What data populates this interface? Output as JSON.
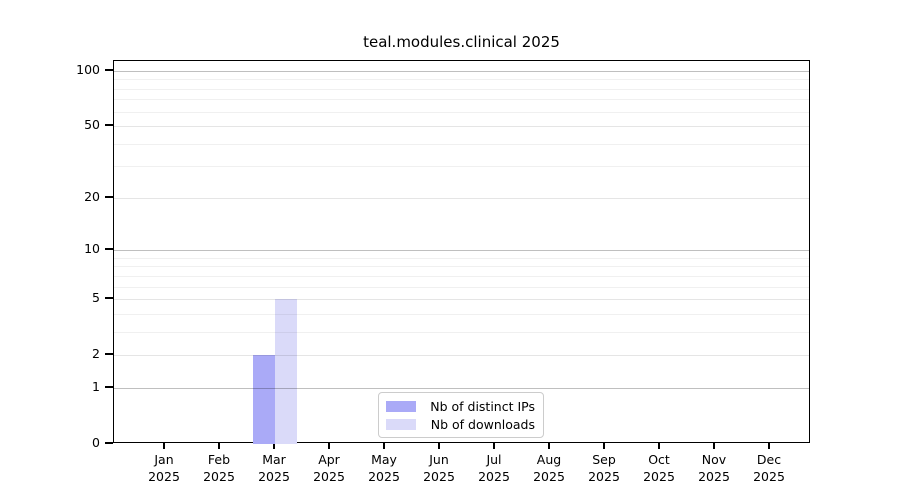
{
  "title": "teal.modules.clinical 2025",
  "chart_data": {
    "type": "bar",
    "title": "teal.modules.clinical 2025",
    "x_months": [
      "Jan",
      "Feb",
      "Mar",
      "Apr",
      "May",
      "Jun",
      "Jul",
      "Aug",
      "Sep",
      "Oct",
      "Nov",
      "Dec"
    ],
    "x_year": "2025",
    "series": [
      {
        "name": "Nb of distinct IPs",
        "color": "#aaaaf7",
        "values": [
          0,
          0,
          2,
          0,
          0,
          0,
          0,
          0,
          0,
          0,
          0,
          0
        ]
      },
      {
        "name": "Nb of downloads",
        "color": "#dadaf9",
        "values": [
          0,
          0,
          5,
          0,
          0,
          0,
          0,
          0,
          0,
          0,
          0,
          0
        ]
      }
    ],
    "xlabel": "",
    "ylabel": "",
    "y_axis": {
      "scale": "log1p",
      "ticks": [
        0,
        1,
        2,
        5,
        10,
        20,
        50,
        100
      ],
      "decade_gridlines": [
        1,
        10,
        100
      ],
      "minor_gridlines": [
        3,
        4,
        6,
        7,
        8,
        9,
        30,
        40,
        60,
        70,
        80,
        90
      ],
      "ylim": [
        0,
        113
      ]
    },
    "grid": "horizontal",
    "legend_position": "bottom-center",
    "colors": {
      "bar_distinct_ips": "#aaaaf7",
      "bar_downloads": "#dadaf9",
      "gridline_decade": "rgba(0,0,0,0.25)",
      "gridline_major": "rgba(0,0,0,0.10)",
      "gridline_minor": "rgba(0,0,0,0.06)",
      "spine": "#000000",
      "legend_border": "#cccccc"
    }
  }
}
